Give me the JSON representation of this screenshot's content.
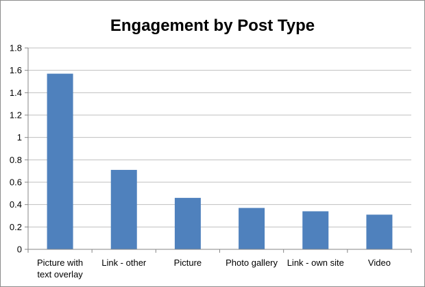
{
  "chart_data": {
    "type": "bar",
    "title": "Engagement by Post Type",
    "xlabel": "",
    "ylabel": "",
    "categories": [
      [
        "Picture with",
        "text overlay"
      ],
      [
        "Link - other"
      ],
      [
        "Picture"
      ],
      [
        "Photo gallery"
      ],
      [
        "Link - own site"
      ],
      [
        "Video"
      ]
    ],
    "values": [
      1.57,
      0.71,
      0.46,
      0.37,
      0.34,
      0.31
    ],
    "ylim": [
      0,
      1.8
    ],
    "yticks": [
      "0",
      "0.2",
      "0.4",
      "0.6",
      "0.8",
      "1",
      "1.2",
      "1.4",
      "1.6",
      "1.8"
    ],
    "grid": true,
    "legend": "none",
    "bar_color": "#4f81bd"
  }
}
